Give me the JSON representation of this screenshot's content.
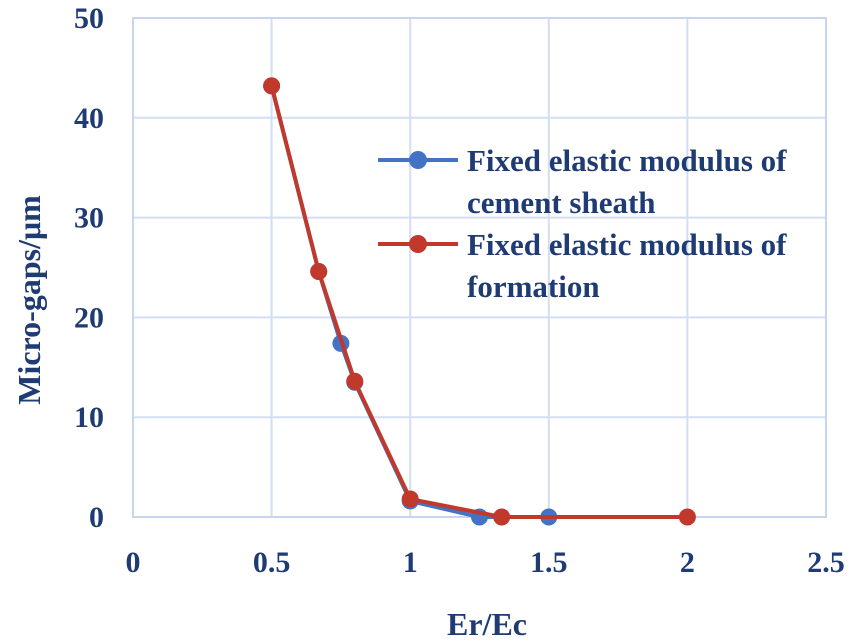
{
  "chart_data": {
    "type": "line",
    "title": "",
    "xlabel": "Er/Ec",
    "ylabel": "Micro-gaps/μm",
    "xlim": [
      0,
      2.5
    ],
    "ylim": [
      0,
      50
    ],
    "xticks": [
      "0",
      "0.5",
      "1",
      "1.5",
      "2",
      "2.5"
    ],
    "yticks": [
      "0",
      "10",
      "20",
      "30",
      "40",
      "50"
    ],
    "grid": true,
    "legend_position": "right",
    "series": [
      {
        "name": "Fixed elastic modulus of cement sheath",
        "legend_lines": [
          "Fixed elastic modulus of",
          "cement sheath"
        ],
        "color": "#4472c4",
        "x": [
          0.5,
          0.67,
          0.75,
          0.8,
          1.0,
          1.25,
          1.5
        ],
        "y": [
          43.2,
          24.6,
          17.4,
          13.5,
          1.6,
          0.0,
          0.0
        ]
      },
      {
        "name": "Fixed elastic modulus of formation",
        "legend_lines": [
          "Fixed elastic modulus of",
          "formation"
        ],
        "color": "#c0392b",
        "x": [
          0.5,
          0.67,
          0.8,
          1.0,
          1.33,
          2.0
        ],
        "y": [
          43.2,
          24.6,
          13.6,
          1.8,
          0.0,
          0.0
        ]
      }
    ]
  }
}
